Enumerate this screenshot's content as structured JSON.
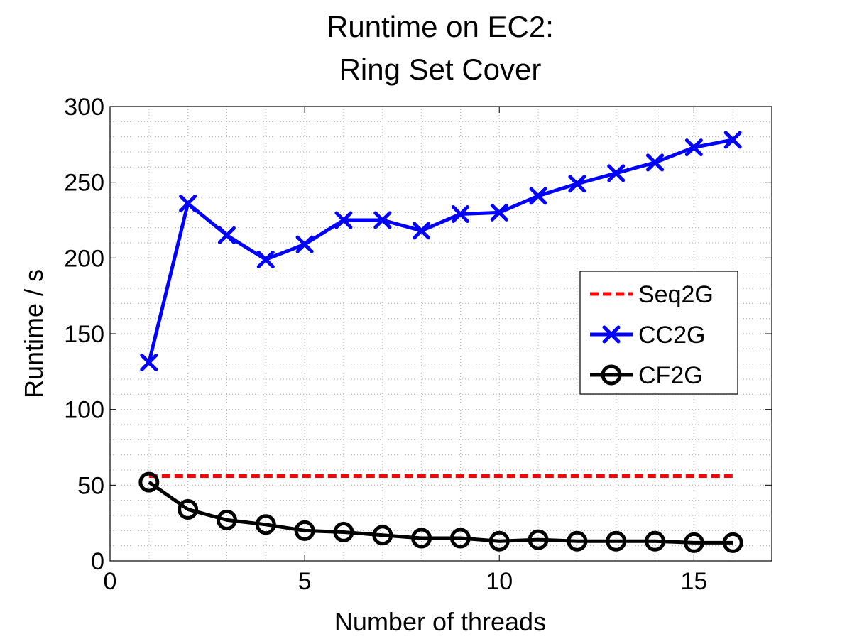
{
  "chart_data": {
    "type": "line",
    "title": [
      "Runtime on EC2:",
      "Ring Set Cover"
    ],
    "xlabel": "Number of threads",
    "ylabel": "Runtime / s",
    "xlim": [
      0,
      17
    ],
    "ylim": [
      0,
      300
    ],
    "xticks": [
      0,
      5,
      10,
      15
    ],
    "yticks": [
      0,
      50,
      100,
      150,
      200,
      250,
      300
    ],
    "grid": true,
    "legend_position": "right-middle",
    "series": [
      {
        "name": "Seq2G",
        "color": "#ff0000",
        "style": "dashed",
        "marker": "none",
        "x": [
          1,
          16
        ],
        "y": [
          56,
          56
        ]
      },
      {
        "name": "CC2G",
        "color": "#0000ff",
        "style": "solid",
        "marker": "x",
        "x": [
          1,
          2,
          3,
          4,
          5,
          6,
          7,
          8,
          9,
          10,
          11,
          12,
          13,
          14,
          15,
          16
        ],
        "y": [
          131,
          236,
          215,
          199,
          209,
          225,
          225,
          218,
          229,
          230,
          241,
          249,
          256,
          263,
          273,
          278
        ]
      },
      {
        "name": "CF2G",
        "color": "#000000",
        "style": "solid",
        "marker": "circle",
        "x": [
          1,
          2,
          3,
          4,
          5,
          6,
          7,
          8,
          9,
          10,
          11,
          12,
          13,
          14,
          15,
          16
        ],
        "y": [
          52,
          34,
          27,
          24,
          20,
          19,
          17,
          15,
          15,
          13,
          14,
          13,
          13,
          13,
          12,
          12
        ]
      }
    ]
  }
}
